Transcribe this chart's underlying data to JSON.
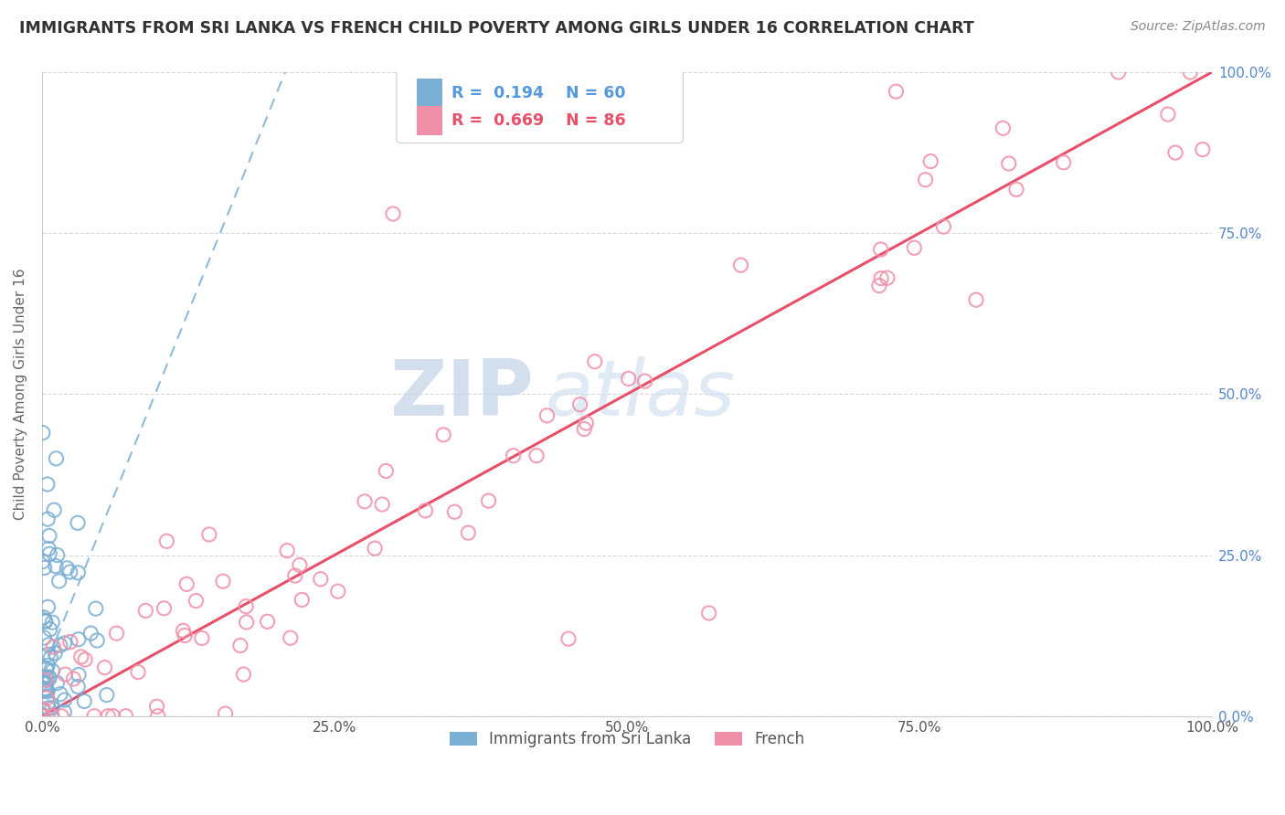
{
  "title": "IMMIGRANTS FROM SRI LANKA VS FRENCH CHILD POVERTY AMONG GIRLS UNDER 16 CORRELATION CHART",
  "source": "Source: ZipAtlas.com",
  "ylabel": "Child Poverty Among Girls Under 16",
  "legend_labels": [
    "Immigrants from Sri Lanka",
    "French"
  ],
  "r_sri_lanka": 0.194,
  "n_sri_lanka": 60,
  "r_french": 0.669,
  "n_french": 86,
  "background_color": "#ffffff",
  "sri_lanka_color": "#7bafd4",
  "french_color": "#f090a8",
  "sri_lanka_line_color": "#7bafd4",
  "french_line_color": "#e8506a",
  "watermark_zip": "ZIP",
  "watermark_atlas": "atlas",
  "x_ticks": [
    0.0,
    0.25,
    0.5,
    0.75,
    1.0
  ],
  "x_tick_labels": [
    "0.0%",
    "25.0%",
    "50.0%",
    "75.0%",
    "100.0%"
  ],
  "y_ticks": [
    0.0,
    0.25,
    0.5,
    0.75,
    1.0
  ],
  "y_tick_labels": [
    "0.0%",
    "25.0%",
    "50.0%",
    "75.0%",
    "100.0%"
  ]
}
